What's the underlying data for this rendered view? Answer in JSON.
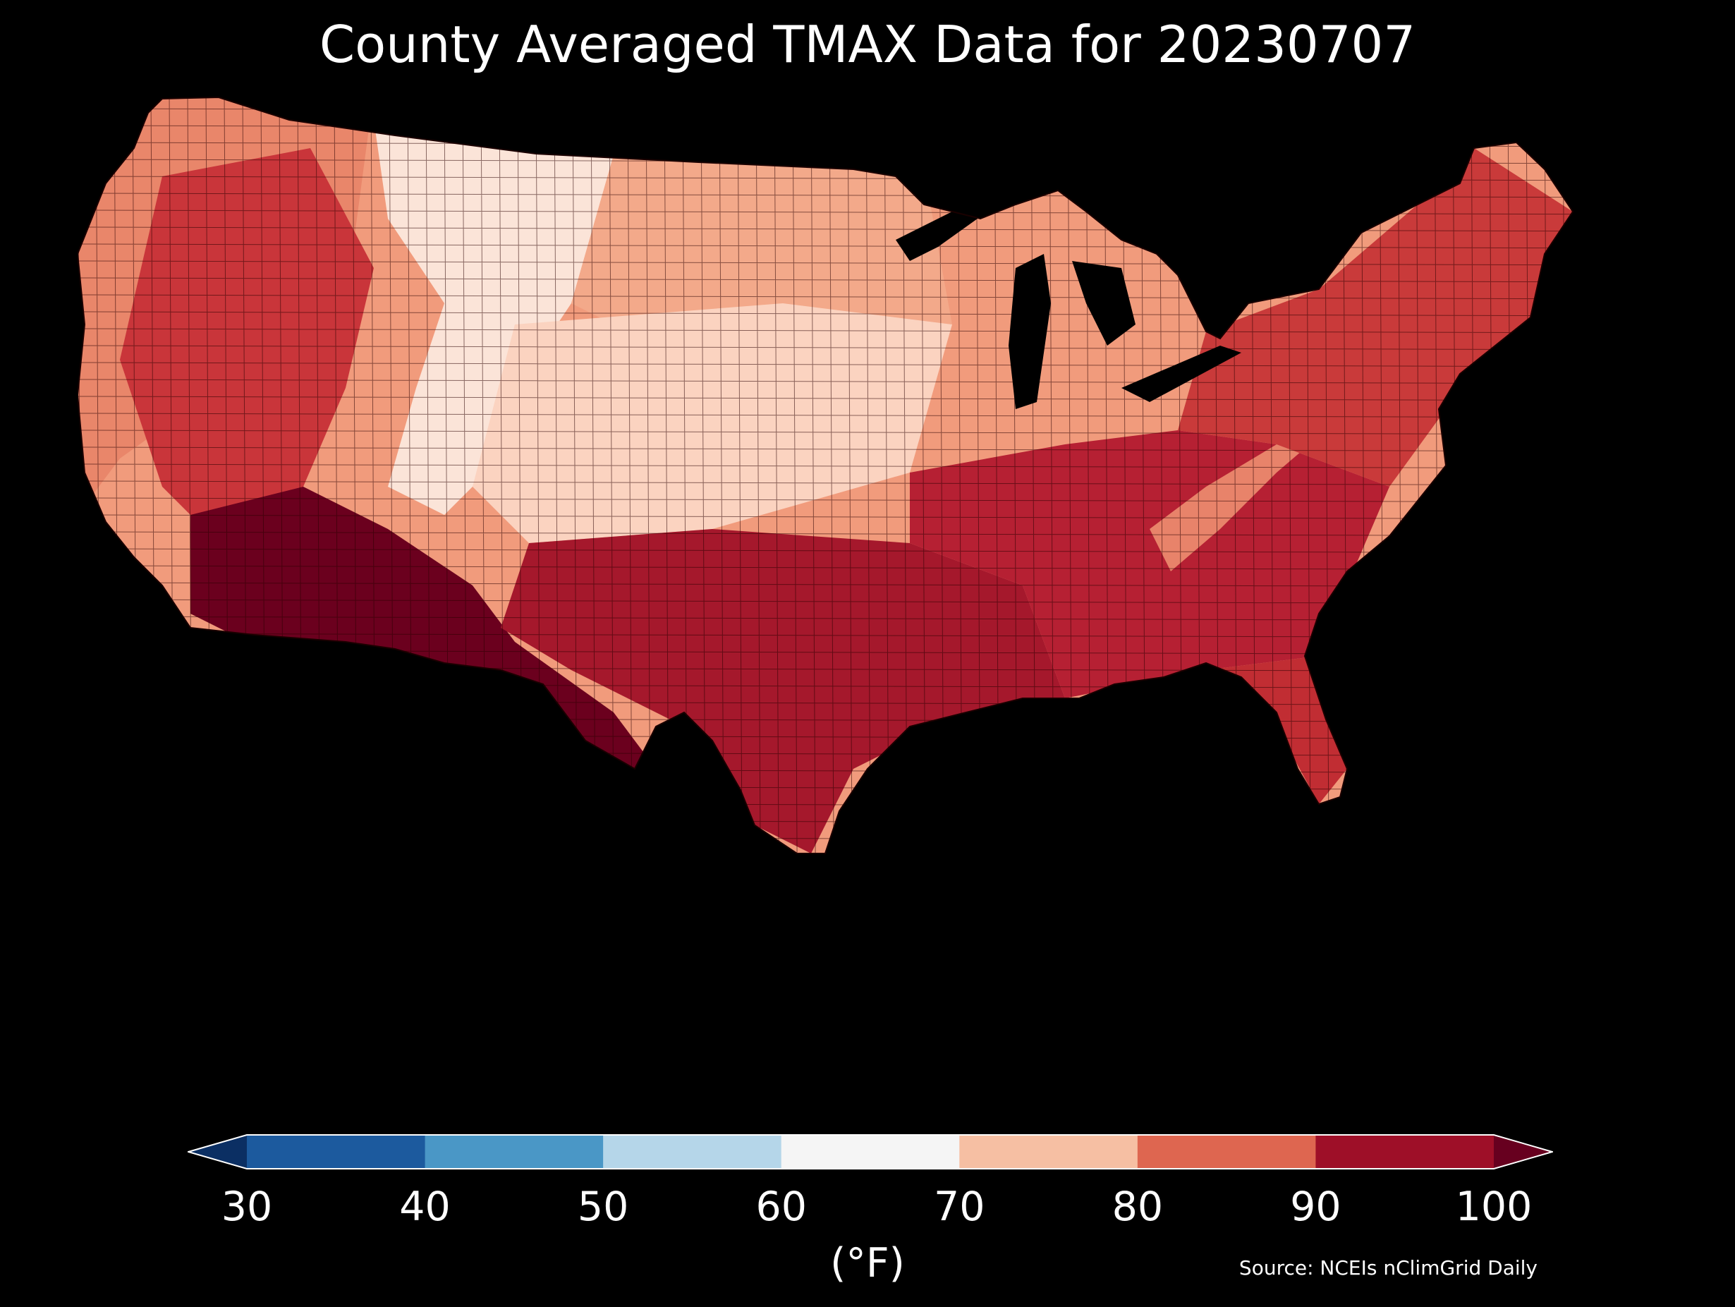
{
  "title": "County Averaged TMAX Data for 20230707",
  "colorbar": {
    "ticks": [
      "30",
      "40",
      "50",
      "60",
      "70",
      "80",
      "90",
      "100"
    ],
    "bins": [
      {
        "from": 30,
        "to": 40,
        "color": "#1c5a9e"
      },
      {
        "from": 40,
        "to": 50,
        "color": "#4a97c6"
      },
      {
        "from": 50,
        "to": 60,
        "color": "#b5d6e9"
      },
      {
        "from": 60,
        "to": 70,
        "color": "#f5f5f5"
      },
      {
        "from": 70,
        "to": 80,
        "color": "#f6bfa3"
      },
      {
        "from": 80,
        "to": 90,
        "color": "#de6650"
      },
      {
        "from": 90,
        "to": 100,
        "color": "#9e0f28"
      }
    ],
    "under_color": "#0b2f63",
    "over_color": "#67001f",
    "units": "(°F)"
  },
  "source": "Source: NCEIs nClimGrid Daily",
  "map": {
    "background": "#000000",
    "border_color": "#2a0000",
    "region_colors": {
      "northwest_coast": "#e9866a",
      "great_basin": "#c9353a",
      "desert_southwest": "#6b001e",
      "rockies": "#fbe4d8",
      "northern_plains": "#f3a98a",
      "central_plains": "#fbd3c0",
      "texas_south": "#a5182c",
      "midwest": "#f19b7c",
      "southeast": "#b62033",
      "northeast": "#c93a3a",
      "appalachia": "#e8836a",
      "florida": "#c12d33"
    }
  }
}
